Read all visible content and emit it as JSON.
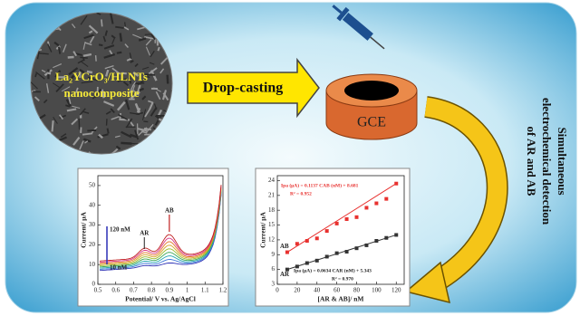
{
  "sem": {
    "line1": "La₂YCrO₃/HLNTs",
    "line2": "nanocomposite"
  },
  "arrow_label": "Drop-casting",
  "electrode_label": "GCE",
  "detection_label": [
    "Simultaneous",
    "electrochemical detection",
    "of AR and AB"
  ],
  "plots": [
    {
      "xlabel": "Potential/ V vs. Ag/AgCl",
      "ylabel": "Current/ μA",
      "xlim": [
        0.5,
        1.2
      ],
      "xticks": [
        0.5,
        0.6,
        0.7,
        0.8,
        0.9,
        1,
        1.1,
        1.2
      ],
      "ylim": [
        0,
        55
      ],
      "yticks": [
        0,
        10,
        20,
        30,
        40,
        50
      ],
      "annotations": [
        "120 nM",
        "10 nM",
        "AR",
        "AB"
      ]
    },
    {
      "xlabel": "[AR & AB]/ nM",
      "ylabel": "Current/ μA",
      "xlim": [
        0,
        128
      ],
      "xticks": [
        0,
        20,
        40,
        60,
        80,
        100,
        120
      ],
      "ylim": [
        3,
        25
      ],
      "yticks": [
        3,
        6,
        9,
        12,
        15,
        18,
        21,
        24
      ],
      "equations": [
        "Ipa (μA) = 0.1137 CAB (nM) + 8.681",
        "R² = 0.952",
        "Ipa (μA) = 0.0634 CAR (nM) + 5.343",
        "R² = 0.970"
      ],
      "series": [
        {
          "name": "AB",
          "color": "#e8312f",
          "x": [
            10,
            20,
            30,
            40,
            50,
            60,
            70,
            80,
            90,
            100,
            110,
            120
          ],
          "values": [
            9.5,
            11.2,
            11.8,
            12.3,
            13.8,
            15.3,
            16.2,
            16.6,
            18.5,
            19.4,
            20.3,
            23.4
          ]
        },
        {
          "name": "AR",
          "color": "#333333",
          "x": [
            10,
            20,
            30,
            40,
            50,
            60,
            70,
            80,
            90,
            100,
            110,
            120
          ],
          "values": [
            6.0,
            6.6,
            7.3,
            7.8,
            8.6,
            9.3,
            9.6,
            10.3,
            10.9,
            11.8,
            12.4,
            13.0
          ]
        }
      ]
    }
  ]
}
